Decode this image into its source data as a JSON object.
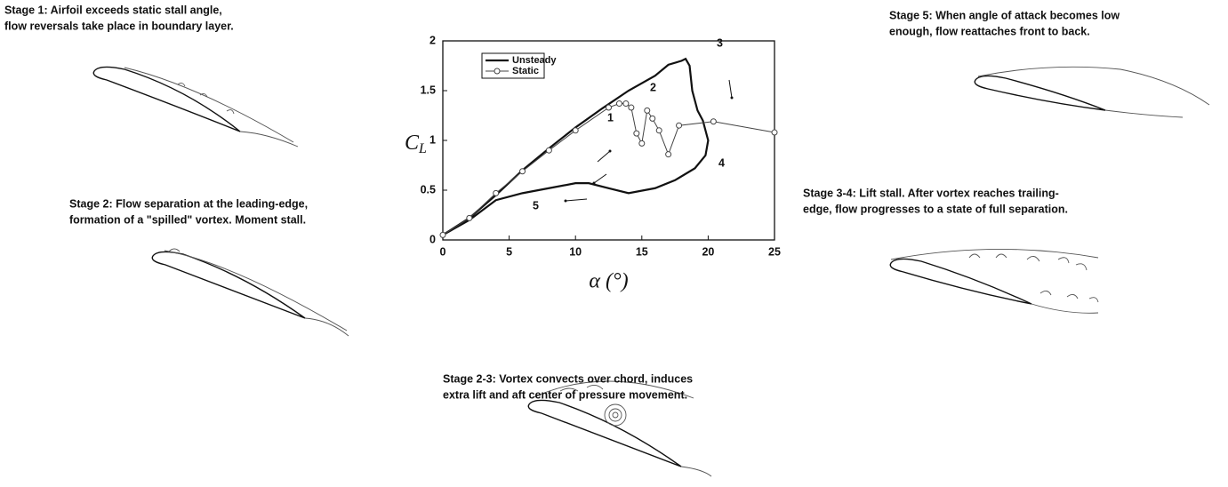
{
  "stages": [
    {
      "lines": [
        "Stage 1: Airfoil exceeds static stall angle,",
        "flow reversals take place in boundary layer."
      ]
    },
    {
      "lines": [
        "Stage 2: Flow separation at the leading-edge,",
        "formation of a \"spilled\" vortex. Moment stall."
      ]
    },
    {
      "lines": [
        "Stage 2-3: Vortex convects over chord, induces",
        "extra lift and aft center of pressure movement."
      ]
    },
    {
      "lines": [
        "Stage 3-4: Lift stall. After vortex reaches trailing-",
        "edge, flow progresses to a state of full separation."
      ]
    },
    {
      "lines": [
        "Stage 5: When angle of attack becomes low",
        "enough, flow reattaches front to back."
      ]
    }
  ],
  "chart_data": {
    "type": "line",
    "y_label": {
      "main": "C",
      "sub": "L"
    },
    "x_label": "α (°)",
    "xlim": [
      0,
      25
    ],
    "xticks": [
      0,
      5,
      10,
      15,
      20,
      25
    ],
    "ylim": [
      0,
      2
    ],
    "yticks": [
      0,
      0.5,
      1,
      1.5,
      2
    ],
    "legend": "top-left",
    "series": [
      {
        "name": "Unsteady",
        "color": "#111111",
        "markers": false,
        "x": [
          0,
          2,
          4,
          6,
          8,
          10,
          12,
          14,
          16,
          17,
          18,
          18.3,
          18.6,
          18.8,
          19.2,
          19.6,
          20,
          19.8,
          19,
          17.5,
          16,
          14,
          12.5,
          11,
          10,
          8,
          6,
          4,
          2,
          0
        ],
        "values": [
          0.05,
          0.22,
          0.45,
          0.7,
          0.92,
          1.13,
          1.32,
          1.5,
          1.65,
          1.76,
          1.8,
          1.82,
          1.75,
          1.5,
          1.3,
          1.2,
          1.0,
          0.85,
          0.72,
          0.6,
          0.52,
          0.47,
          0.52,
          0.57,
          0.57,
          0.52,
          0.47,
          0.4,
          0.2,
          0.05
        ]
      },
      {
        "name": "Static",
        "color": "#444444",
        "markers": true,
        "x": [
          0,
          2,
          4,
          6,
          8,
          10,
          12.5,
          13.3,
          13.8,
          14.2,
          14.6,
          15,
          15.4,
          15.8,
          16.3,
          17,
          17.8,
          20.4,
          25
        ],
        "values": [
          0.05,
          0.22,
          0.47,
          0.69,
          0.9,
          1.1,
          1.33,
          1.37,
          1.37,
          1.33,
          1.07,
          0.97,
          1.3,
          1.22,
          1.1,
          0.86,
          1.15,
          1.19,
          1.08
        ]
      }
    ],
    "annotations": [
      "1",
      "2",
      "3",
      "4",
      "5"
    ]
  }
}
